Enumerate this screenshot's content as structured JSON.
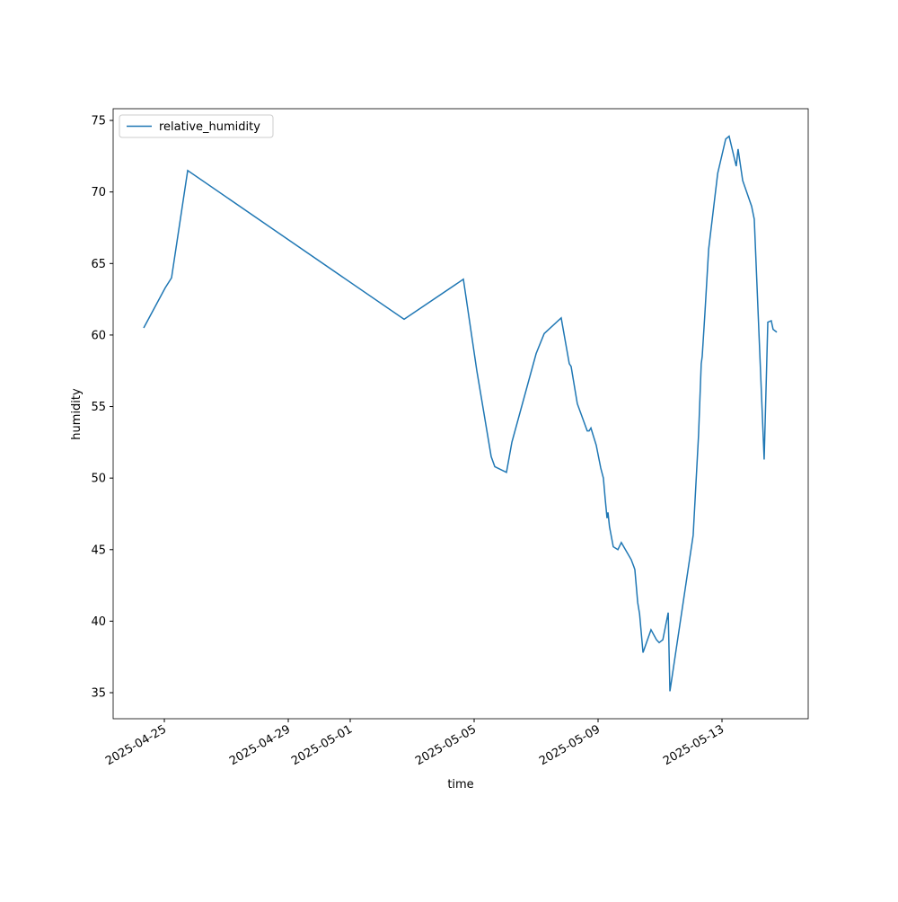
{
  "chart_data": {
    "type": "line",
    "xlabel": "time",
    "ylabel": "humidity",
    "x": [
      "2025-04-24T08:00",
      "2025-04-25T00:40",
      "2025-04-25T05:34",
      "2025-04-25T18:05",
      "2025-05-02T17:44",
      "2025-05-04T15:39",
      "2025-05-05T02:05",
      "2025-05-05T07:39",
      "2025-05-05T13:12",
      "2025-05-05T16:00",
      "2025-05-06T01:02",
      "2025-05-06T05:13",
      "2025-05-07T00:00",
      "2025-05-07T06:15",
      "2025-05-07T19:26",
      "2025-05-08T01:41",
      "2025-05-08T03:07",
      "2025-05-08T07:55",
      "2025-05-08T15:36",
      "2025-05-08T17:02",
      "2025-05-08T18:27",
      "2025-05-08T22:34",
      "2025-05-09T02:05",
      "2025-05-09T04:07",
      "2025-05-09T05:34",
      "2025-05-09T06:57",
      "2025-05-09T07:40",
      "2025-05-09T08:51",
      "2025-05-09T11:47",
      "2025-05-09T15:22",
      "2025-05-09T18:00",
      "2025-05-10T01:40",
      "2025-05-10T03:45",
      "2025-05-10T04:30",
      "2025-05-10T06:42",
      "2025-05-10T08:10",
      "2025-05-10T10:49",
      "2025-05-10T17:00",
      "2025-05-10T21:15",
      "2025-05-10T23:20",
      "2025-05-11T02:10",
      "2025-05-11T06:20",
      "2025-05-11T07:40",
      "2025-05-12T01:40",
      "2025-05-12T05:50",
      "2025-05-12T07:55",
      "2025-05-12T08:40",
      "2025-05-12T10:45",
      "2025-05-12T13:40",
      "2025-05-12T20:40",
      "2025-05-13T02:52",
      "2025-05-13T05:31",
      "2025-05-13T11:02",
      "2025-05-13T12:27",
      "2025-05-13T16:02",
      "2025-05-13T22:57",
      "2025-05-14T01:00",
      "2025-05-14T08:40",
      "2025-05-14T11:30",
      "2025-05-14T14:10",
      "2025-05-14T15:35",
      "2025-05-14T18:28"
    ],
    "series": [
      {
        "name": "relative_humidity",
        "color": "#1f77b4",
        "values": [
          60.5,
          63.3,
          64.0,
          71.5,
          61.1,
          63.9,
          57.5,
          54.5,
          51.5,
          50.8,
          50.4,
          52.5,
          58.7,
          60.1,
          61.2,
          58.0,
          57.8,
          55.2,
          53.3,
          53.3,
          53.5,
          52.3,
          50.7,
          50.0,
          48.5,
          47.2,
          47.6,
          46.6,
          45.2,
          45.0,
          45.5,
          44.3,
          43.8,
          43.6,
          41.3,
          40.5,
          37.8,
          39.4,
          38.7,
          38.5,
          38.7,
          40.6,
          35.1,
          46.0,
          53.0,
          58.0,
          58.5,
          61.5,
          66.0,
          71.3,
          73.7,
          73.9,
          71.8,
          73.0,
          70.8,
          69.0,
          68.1,
          51.3,
          60.9,
          61.0,
          60.4,
          60.2
        ]
      }
    ],
    "xlim": [
      "2025-04-23T08:20",
      "2025-05-15T18:47"
    ],
    "xticks": [
      "2025-04-25",
      "2025-04-29",
      "2025-05-01",
      "2025-05-05",
      "2025-05-09",
      "2025-05-13"
    ],
    "ylim": [
      33.18,
      75.82
    ],
    "yticks": [
      35,
      40,
      45,
      50,
      55,
      60,
      65,
      70,
      75
    ],
    "legend": "upper left"
  }
}
